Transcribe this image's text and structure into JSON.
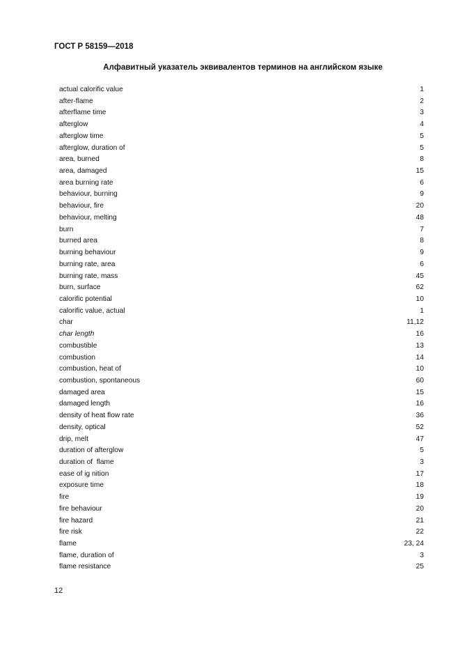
{
  "header": {
    "doc_code": "ГОСТ Р 58159—2018",
    "title": "Алфавитный указатель эквивалентов терминов на английском языке"
  },
  "entries": [
    {
      "term": "actual calorific value",
      "ref": "1"
    },
    {
      "term": "after-flame",
      "ref": "2"
    },
    {
      "term": "afterflame time",
      "ref": "3"
    },
    {
      "term": "afterglow",
      "ref": "4"
    },
    {
      "term": "afterglow time",
      "ref": "5"
    },
    {
      "term": "afterglow, duration of",
      "ref": "5"
    },
    {
      "term": "area, burned",
      "ref": "8"
    },
    {
      "term": "area, damaged",
      "ref": "15"
    },
    {
      "term": "area burning rate",
      "ref": "6"
    },
    {
      "term": "behaviour, burning",
      "ref": "9"
    },
    {
      "term": "behaviour, fire",
      "ref": "20"
    },
    {
      "term": "behaviour, melting",
      "ref": "48"
    },
    {
      "term": "burn",
      "ref": "7"
    },
    {
      "term": "burned area",
      "ref": "8"
    },
    {
      "term": "burning behaviour",
      "ref": "9"
    },
    {
      "term": "burning rate, area",
      "ref": "6"
    },
    {
      "term": "burning rate, mass",
      "ref": "45"
    },
    {
      "term": "burn, surface",
      "ref": "62"
    },
    {
      "term": "calorific potential",
      "ref": "10"
    },
    {
      "term": "calorific value, actual",
      "ref": "1"
    },
    {
      "term": "char",
      "ref": "11,12"
    },
    {
      "term": "char length",
      "ref": "16",
      "italic": true
    },
    {
      "term": "combustible",
      "ref": "13"
    },
    {
      "term": "combustion",
      "ref": "14"
    },
    {
      "term": "combustion, heat of",
      "ref": "10"
    },
    {
      "term": "combustion, spontaneous",
      "ref": "60"
    },
    {
      "term": "damaged area",
      "ref": "15"
    },
    {
      "term": "damaged length",
      "ref": "16"
    },
    {
      "term": "density of heat flow rate",
      "ref": "36"
    },
    {
      "term": "density, optical",
      "ref": "52"
    },
    {
      "term": "drip, melt",
      "ref": "47"
    },
    {
      "term": "duration of afterglow",
      "ref": "5"
    },
    {
      "term": "duration of  flame",
      "ref": "3"
    },
    {
      "term": "ease of ig nition",
      "ref": "17"
    },
    {
      "term": "exposure time",
      "ref": "18"
    },
    {
      "term": "fire",
      "ref": "19"
    },
    {
      "term": "fire behaviour",
      "ref": "20"
    },
    {
      "term": "fire hazard",
      "ref": "21"
    },
    {
      "term": "fire risk",
      "ref": "22"
    },
    {
      "term": "flame",
      "ref": "23, 24"
    },
    {
      "term": "flame, duration of",
      "ref": "3"
    },
    {
      "term": "flame resistance",
      "ref": "25"
    }
  ],
  "footer": {
    "page_number": "12"
  }
}
